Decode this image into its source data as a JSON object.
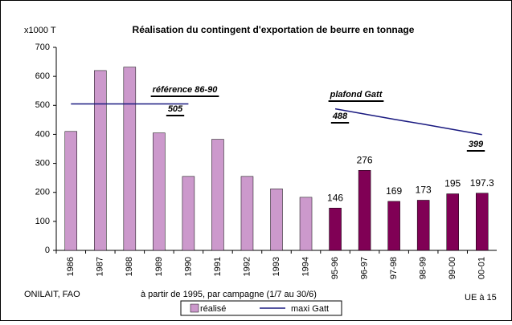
{
  "chart_data": {
    "type": "bar",
    "title": "Réalisation du contingent d'exportation de beurre en tonnage",
    "y_label": "x1000 T",
    "source": "ONILAIT, FAO",
    "x_note": "à partir de 1995, par campagne (1/7 au 30/6)",
    "region_note": "UE à 15",
    "categories": [
      "1986",
      "1987",
      "1988",
      "1989",
      "1990",
      "1991",
      "1992",
      "1993",
      "1994",
      "95-96",
      "96-97",
      "97-98",
      "98-99",
      "99-00",
      "00-01"
    ],
    "series": [
      {
        "name": "réalisé",
        "type": "bar",
        "color": "#cc99cc",
        "colors": [
          "#cc99cc",
          "#cc99cc",
          "#cc99cc",
          "#cc99cc",
          "#cc99cc",
          "#cc99cc",
          "#cc99cc",
          "#cc99cc",
          "#cc99cc",
          "#800055",
          "#800055",
          "#800055",
          "#800055",
          "#800055",
          "#800055"
        ],
        "values": [
          410,
          620,
          632,
          405,
          255,
          383,
          255,
          212,
          183,
          146,
          276,
          169,
          173,
          195,
          197.3
        ],
        "value_labels": [
          null,
          null,
          null,
          null,
          null,
          null,
          null,
          null,
          null,
          "146",
          "276",
          "169",
          "173",
          "195",
          "197.3"
        ]
      },
      {
        "name": "maxi Gatt",
        "type": "line",
        "color": "#1a1a80",
        "values": [
          505,
          505,
          505,
          505,
          505,
          null,
          null,
          null,
          null,
          488,
          470,
          452,
          435,
          417,
          399
        ]
      }
    ],
    "annotations": [
      "référence 86-90",
      "505",
      "plafond Gatt",
      "488",
      "399"
    ],
    "ylim": [
      0,
      700
    ],
    "yticks": [
      0,
      100,
      200,
      300,
      400,
      500,
      600,
      700
    ],
    "grid": false
  }
}
